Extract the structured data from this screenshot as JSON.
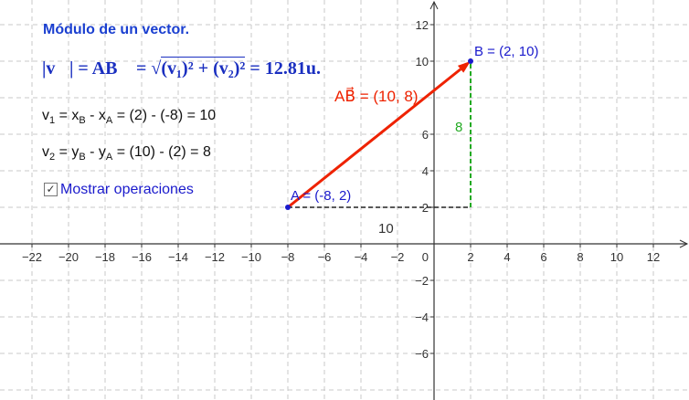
{
  "title": "Módulo de un vector.",
  "formula": {
    "lhs": "|v⃗| = AB⃗ = ",
    "radicand": "(v₁)² + (v₂)²",
    "result": " = 12.81u."
  },
  "operations": {
    "v1": {
      "name": "v",
      "sub": "1",
      "expr": " = x",
      "s1": "B",
      "mid": " - x",
      "s2": "A",
      "rest": " = (2) - (-8) = 10"
    },
    "v2": {
      "name": "v",
      "sub": "2",
      "expr": " = y",
      "s1": "B",
      "mid": " - y",
      "s2": "A",
      "rest": " = (10) - (2) = 8"
    }
  },
  "checkbox": {
    "label": "Mostrar operaciones",
    "checked": true,
    "mark": "☑"
  },
  "graph": {
    "point_A": {
      "label": "A = (-8, 2)",
      "x": -8,
      "y": 2
    },
    "point_B": {
      "label": "B = (2, 10)",
      "x": 2,
      "y": 10
    },
    "vector_label": "AB⃗ = (10, 8)",
    "dx_label": "10",
    "dy_label": "8",
    "x_ticks": [
      -22,
      -20,
      -18,
      -16,
      -14,
      -12,
      -10,
      -8,
      -6,
      -4,
      -2,
      2,
      4,
      6,
      8,
      10,
      12
    ],
    "y_ticks": [
      12,
      10,
      6,
      4,
      2,
      -2,
      -4,
      -6
    ],
    "origin_label": "0",
    "colors": {
      "vector": "#ee2200",
      "points": "#1a1acc",
      "vertical": "#22aa22",
      "horizontal": "#222222",
      "grid": "#c8c8c8"
    }
  }
}
